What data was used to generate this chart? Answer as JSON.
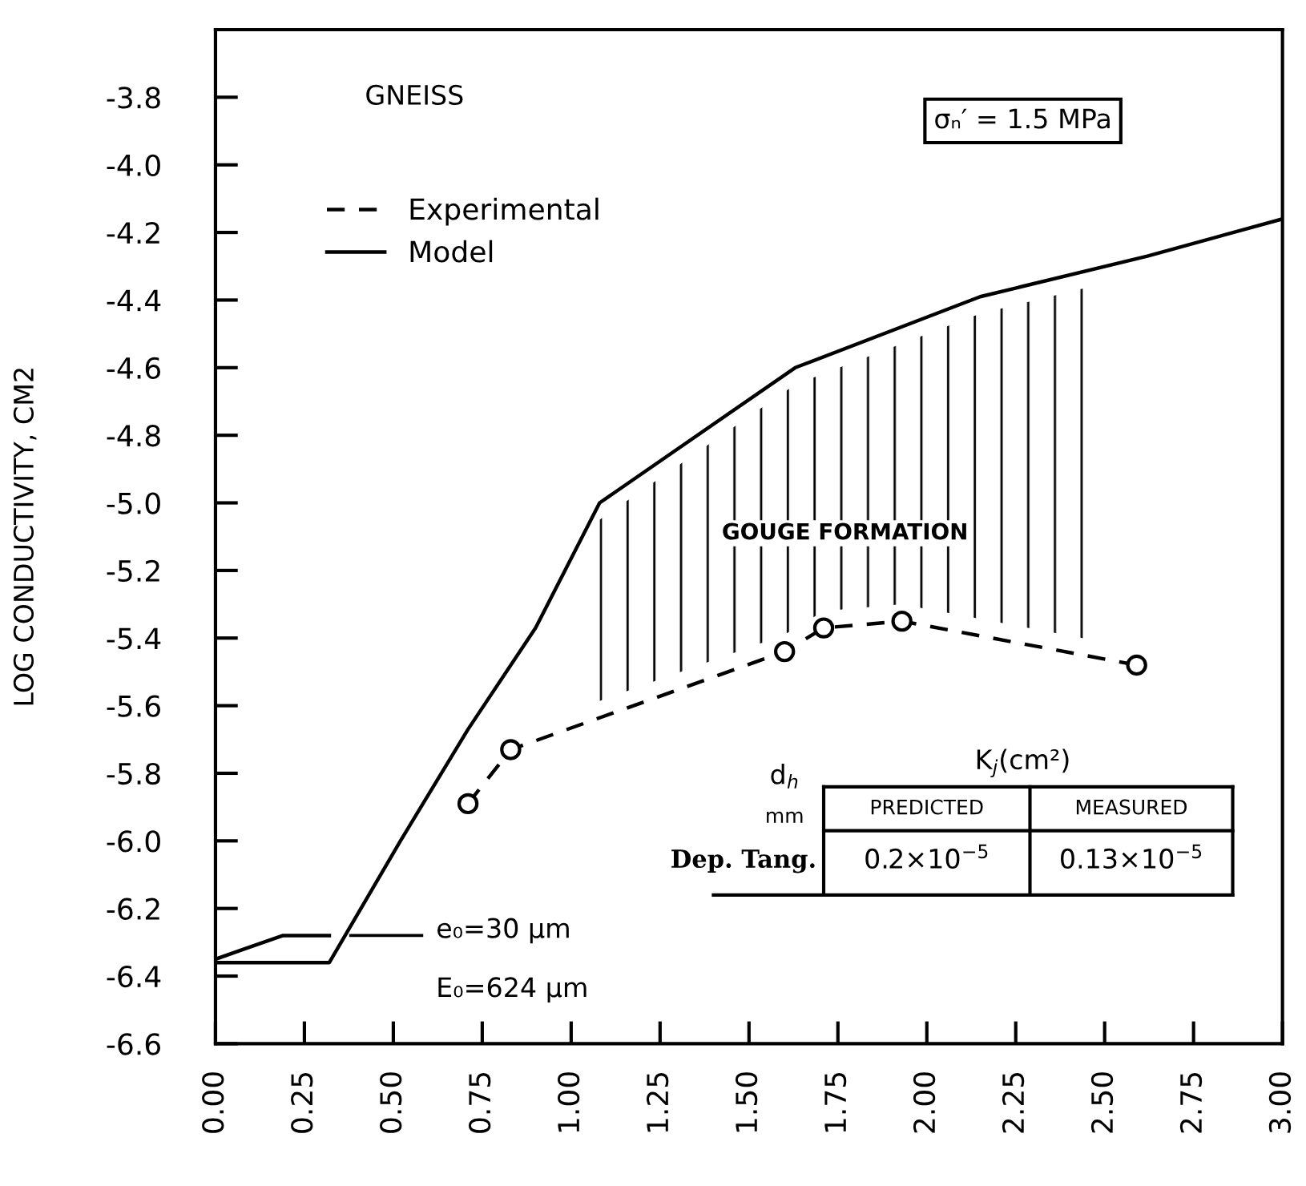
{
  "chart_data": {
    "type": "line",
    "ylabel": "LOG CONDUCTIVITY, CM2",
    "xlim": [
      0,
      3
    ],
    "ylim": [
      -6.6,
      -3.6
    ],
    "xticks": [
      {
        "value": 0,
        "label": "0.00"
      },
      {
        "value": 0.25,
        "label": "0.25"
      },
      {
        "value": 0.5,
        "label": "0.50"
      },
      {
        "value": 0.75,
        "label": "0.75"
      },
      {
        "value": 1,
        "label": "1.00"
      },
      {
        "value": 1.25,
        "label": "1.25"
      },
      {
        "value": 1.5,
        "label": "1.50"
      },
      {
        "value": 1.75,
        "label": "1.75"
      },
      {
        "value": 2,
        "label": "2.00"
      },
      {
        "value": 2.25,
        "label": "2.25"
      },
      {
        "value": 2.5,
        "label": "2.50"
      },
      {
        "value": 2.75,
        "label": "2.75"
      },
      {
        "value": 3,
        "label": "3.00"
      }
    ],
    "yticks": [
      -3.8,
      {
        "value": -4.0,
        "label": "-4.0"
      },
      -4.2,
      -4.4,
      -4.6,
      -4.8,
      {
        "value": -5.0,
        "label": "-5.0"
      },
      -5.2,
      -5.4,
      -5.6,
      -5.8,
      {
        "value": -6.0,
        "label": "-6.0"
      },
      -6.2,
      -6.4,
      -6.6
    ],
    "series": [
      {
        "name": "Experimental",
        "color": "#000000",
        "line_style": "dashed",
        "marker": "circle",
        "x": [
          0.71,
          0.83,
          1.6,
          1.71,
          1.93,
          2.59
        ],
        "values": [
          -5.89,
          -5.73,
          -5.44,
          -5.37,
          -5.35,
          -5.48
        ]
      },
      {
        "name": "Model",
        "color": "#000000",
        "line_style": "solid",
        "x": [
          0,
          0.32,
          0.52,
          0.71,
          0.9,
          1.08,
          1.63,
          2.15,
          2.62,
          3.0
        ],
        "values": [
          -6.36,
          -6.36,
          -6.0,
          -5.67,
          -5.37,
          -5.0,
          -4.6,
          -4.39,
          -4.27,
          -4.16
        ]
      },
      {
        "color": "#000000",
        "line_style": "solid",
        "x": [
          0,
          0.08,
          0.19,
          0.32
        ],
        "values": [
          -6.35,
          -6.32,
          -6.28,
          -6.28
        ]
      }
    ],
    "annotations": [
      "GOUGE FORMATION",
      "GNEISS",
      "σₙ′ = 1.5 MPa",
      "e₀=30 µm",
      "E₀=624 µm",
      "d$_{h}$",
      "mm",
      "K$_{j}$(cm²)",
      "PREDICTED",
      "MEASURED",
      "Dep. Tang.",
      "0.2×10$^{−5}$",
      "0.13×10$^{−5}$"
    ],
    "legend": "top left",
    "grid": false
  }
}
